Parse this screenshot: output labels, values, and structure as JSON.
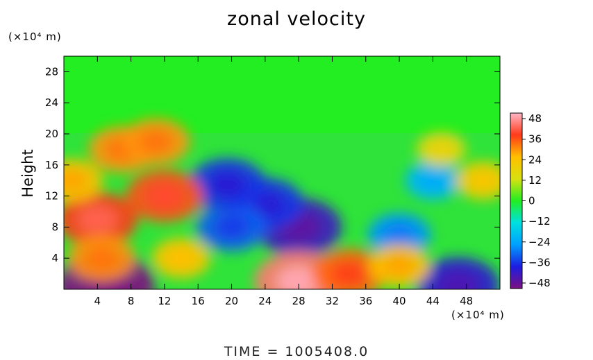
{
  "chart_data": {
    "type": "heatmap",
    "title": "zonal velocity",
    "ylabel": "Height",
    "y_unit_label": "(×10⁴ m)",
    "x_unit_label": "(×10⁴ m)",
    "footer": "TIME  =  1005408.0",
    "x_ticks": [
      "4",
      "8",
      "12",
      "16",
      "20",
      "24",
      "28",
      "32",
      "36",
      "40",
      "44",
      "48"
    ],
    "y_ticks": [
      "4",
      "8",
      "12",
      "16",
      "20",
      "24",
      "28"
    ],
    "xlim": [
      0,
      52
    ],
    "ylim": [
      0,
      30
    ],
    "colorbar": {
      "ticks": [
        "48",
        "36",
        "24",
        "12",
        "0",
        "−12",
        "−24",
        "−36",
        "−48"
      ],
      "range": [
        -48,
        48
      ],
      "colors": [
        "#7d1082",
        "#1d1de0",
        "#00a0ff",
        "#00e0e0",
        "#22ee22",
        "#d8e010",
        "#ffc000",
        "#ff3a1a",
        "#ffb8c8"
      ]
    },
    "features": [
      {
        "x": 28,
        "y": 8,
        "value": -40
      },
      {
        "x": 24,
        "y": 11,
        "value": -34
      },
      {
        "x": 20,
        "y": 8,
        "value": -30
      },
      {
        "x": 19.5,
        "y": 13.5,
        "value": -34
      },
      {
        "x": 40,
        "y": 7,
        "value": -25
      },
      {
        "x": 44,
        "y": 14,
        "value": -20
      },
      {
        "x": 5,
        "y": 0.5,
        "value": -48
      },
      {
        "x": 47,
        "y": 0.5,
        "value": -38
      },
      {
        "x": 28,
        "y": 1,
        "value": 42
      },
      {
        "x": 34,
        "y": 2,
        "value": 32
      },
      {
        "x": 4,
        "y": 9,
        "value": 36
      },
      {
        "x": 12,
        "y": 12,
        "value": 34
      },
      {
        "x": 7,
        "y": 18,
        "value": 28
      },
      {
        "x": 1,
        "y": 14,
        "value": 24
      },
      {
        "x": 4.5,
        "y": 4,
        "value": 28
      },
      {
        "x": 50,
        "y": 14,
        "value": 20
      },
      {
        "x": 40,
        "y": 3,
        "value": 24
      },
      {
        "x": 11,
        "y": 19,
        "value": 28
      },
      {
        "x": 14,
        "y": 4,
        "value": 22
      },
      {
        "x": 45,
        "y": 18,
        "value": 16
      }
    ]
  }
}
